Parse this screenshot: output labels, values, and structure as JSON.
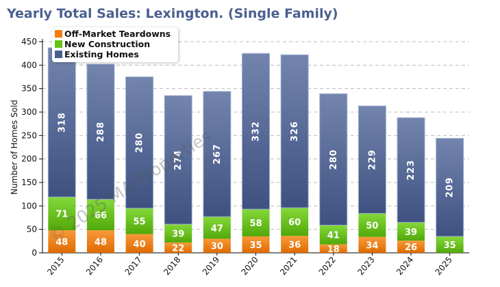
{
  "chart_data": {
    "type": "bar",
    "stacked": true,
    "title": "Yearly Total Sales: Lexington. (Single Family)",
    "xlabel": "",
    "ylabel": "Number of Homes Sold",
    "ylim": [
      0,
      450
    ],
    "yticks": [
      0,
      50,
      100,
      150,
      200,
      250,
      300,
      350,
      400,
      450
    ],
    "grid": true,
    "legend_position": "top-left",
    "categories": [
      "2015",
      "2016",
      "2017",
      "2018",
      "2019",
      "2020",
      "2021",
      "2022",
      "2023",
      "2024",
      "2025"
    ],
    "series": [
      {
        "name": "Off-Market Teardowns",
        "color": "#f07d10",
        "values": [
          48,
          48,
          40,
          22,
          30,
          35,
          36,
          18,
          34,
          26,
          0
        ]
      },
      {
        "name": "New Construction",
        "color": "#66c414",
        "values": [
          71,
          66,
          55,
          39,
          47,
          58,
          60,
          41,
          50,
          39,
          35
        ]
      },
      {
        "name": "Existing Homes",
        "color": "#4a5e8e",
        "values": [
          318,
          288,
          280,
          274,
          267,
          332,
          326,
          280,
          229,
          223,
          209
        ]
      }
    ],
    "watermark": "© 2025 MA Properties"
  }
}
